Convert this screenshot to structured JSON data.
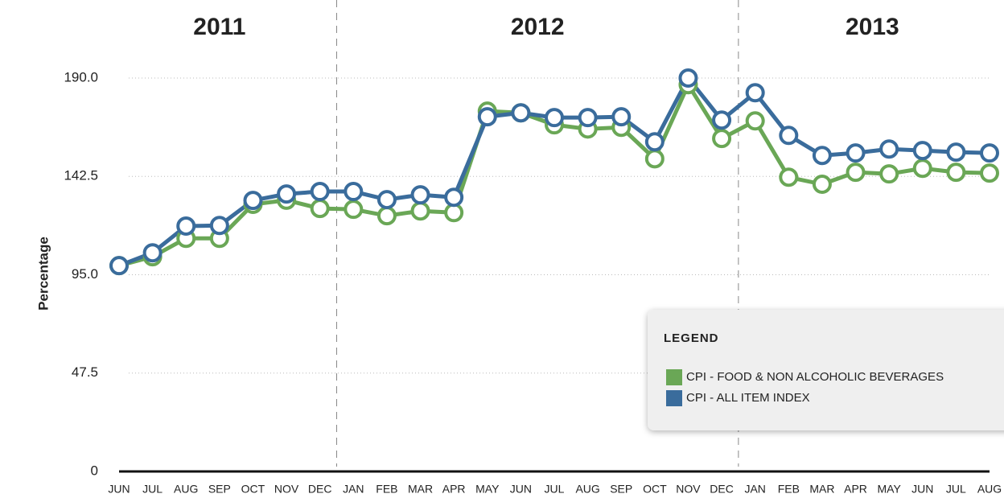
{
  "chart_data": {
    "type": "line",
    "year_labels": [
      "2011",
      "2012",
      "2013"
    ],
    "y_label": "Percentage",
    "legend_title": "LEGEND",
    "categories": [
      "JUN",
      "JUL",
      "AUG",
      "SEP",
      "OCT",
      "NOV",
      "DEC",
      "JAN",
      "FEB",
      "MAR",
      "APR",
      "MAY",
      "JUN",
      "JUL",
      "AUG",
      "SEP",
      "OCT",
      "NOV",
      "DEC",
      "JAN",
      "FEB",
      "MAR",
      "APR",
      "MAY",
      "JUN",
      "JUL",
      "AUG"
    ],
    "series": [
      {
        "name": "CPI - FOOD & NON ALCOHOLIC BEVERAGES",
        "color": "#6aa756",
        "values": [
          99.4,
          103.7,
          112.6,
          112.6,
          129,
          131,
          127,
          126.6,
          123.5,
          125.8,
          125,
          174,
          173.2,
          167.4,
          165.4,
          166.2,
          151,
          186.8,
          160.8,
          169.3,
          142.1,
          138.7,
          144.5,
          143.7,
          146.4,
          144.5,
          144.1
        ]
      },
      {
        "name": "CPI - ALL ITEM INDEX",
        "color": "#3a6c9c",
        "values": [
          99.4,
          105.6,
          118.5,
          118.8,
          130.9,
          134,
          135.2,
          135.2,
          131.3,
          133.6,
          132.4,
          171.3,
          173.2,
          170.9,
          170.9,
          171.3,
          159.2,
          190,
          169.7,
          182.9,
          162.3,
          152.6,
          153.8,
          155.7,
          155,
          154.2,
          153.8
        ]
      }
    ],
    "ylim": [
      0,
      200
    ],
    "yticks": [
      0,
      47.5,
      {
        "value": 95,
        "label": "95.0"
      },
      142.5,
      {
        "value": 190,
        "label": "190.0"
      }
    ],
    "grid": true
  }
}
